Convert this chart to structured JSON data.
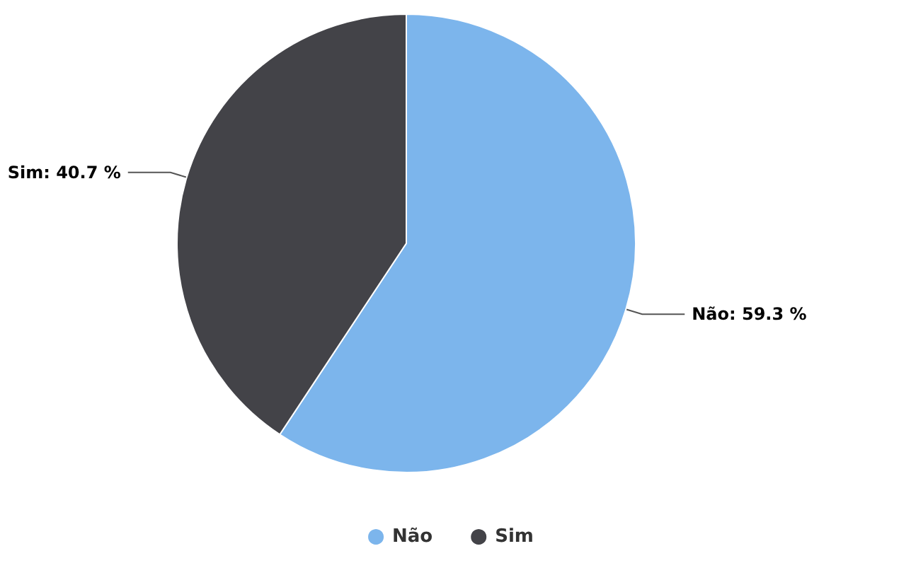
{
  "chart_data": {
    "type": "pie",
    "categories": [
      "Não",
      "Sim"
    ],
    "values": [
      59.3,
      40.7
    ],
    "colors": [
      "#7cb5ec",
      "#434348"
    ],
    "value_labels": [
      "Não: 59.3 %",
      "Sim: 40.7 %"
    ],
    "legend": "bottom"
  }
}
